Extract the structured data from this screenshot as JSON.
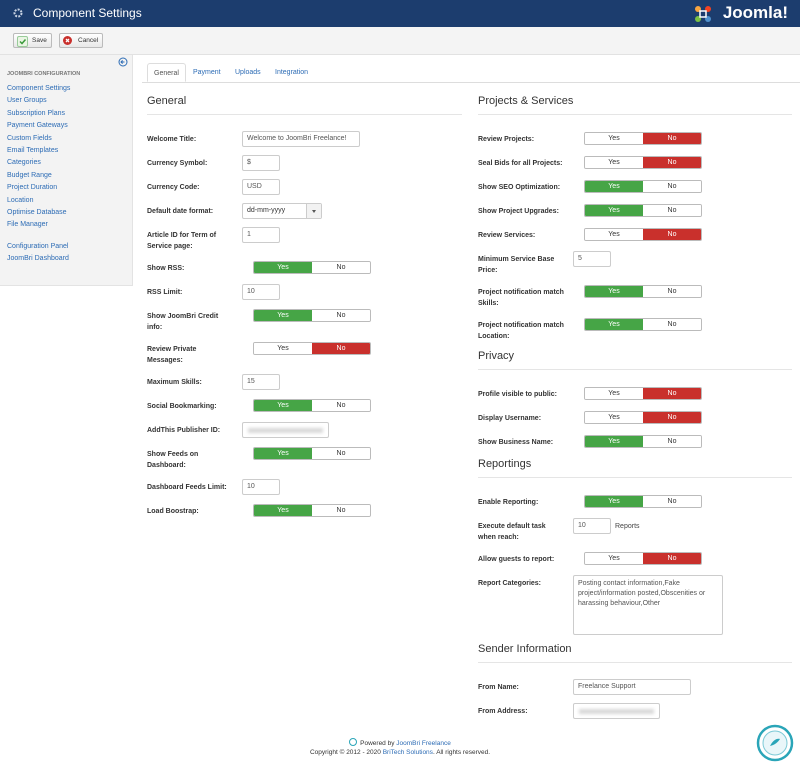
{
  "header": {
    "title": "Component Settings",
    "brand": "Joomla!"
  },
  "toolbar": {
    "save": "Save",
    "cancel": "Cancel"
  },
  "sidebar": {
    "heading": "JOOMBRI CONFIGURATION",
    "links": [
      "Component Settings",
      "User Groups",
      "Subscription Plans",
      "Payment Gateways",
      "Custom Fields",
      "Email Templates",
      "Categories",
      "Budget Range",
      "Project Duration",
      "Location",
      "Optimise Database",
      "File Manager"
    ],
    "links2": [
      "Configuration Panel",
      "JoomBri Dashboard"
    ]
  },
  "tabs": [
    {
      "label": "General",
      "active": true
    },
    {
      "label": "Payment"
    },
    {
      "label": "Uploads"
    },
    {
      "label": "Integration"
    }
  ],
  "toggle_labels": {
    "yes": "Yes",
    "no": "No"
  },
  "columns": [
    {
      "sections": [
        {
          "title": "General",
          "fields": [
            {
              "label": "Welcome Title:",
              "input": "text",
              "value": "Welcome to JoomBri Freelance!"
            },
            {
              "label": "Currency Symbol:",
              "input": "short",
              "value": "$"
            },
            {
              "label": "Currency Code:",
              "input": "short",
              "value": "USD"
            },
            {
              "label": "Default date format:",
              "input": "select",
              "value": "dd-mm-yyyy"
            },
            {
              "label": "Article ID for Term of Service page:",
              "input": "short",
              "value": "1"
            },
            {
              "label": "Show RSS:",
              "input": "toggle",
              "on": true
            },
            {
              "label": "RSS Limit:",
              "input": "short",
              "value": "10"
            },
            {
              "label": "Show JoomBri Credit info:",
              "input": "toggle",
              "on": true
            },
            {
              "label": "Review Private Messages:",
              "input": "toggle",
              "on": false
            },
            {
              "label": "Maximum Skills:",
              "input": "short",
              "value": "15"
            },
            {
              "label": "Social Bookmarking:",
              "input": "toggle",
              "on": true
            },
            {
              "label": "AddThis Publisher ID:",
              "input": "hidden"
            },
            {
              "label": "Show Feeds on Dashboard:",
              "input": "toggle",
              "on": true
            },
            {
              "label": "Dashboard Feeds Limit:",
              "input": "short",
              "value": "10"
            },
            {
              "label": "Load Boostrap:",
              "input": "toggle",
              "on": true
            }
          ]
        }
      ]
    },
    {
      "sections": [
        {
          "title": "Projects & Services",
          "fields": [
            {
              "label": "Review Projects:",
              "input": "toggle",
              "on": false
            },
            {
              "label": "Seal Bids for all Projects:",
              "input": "toggle",
              "on": false
            },
            {
              "label": "Show SEO Optimization:",
              "input": "toggle",
              "on": true
            },
            {
              "label": "Show Project Upgrades:",
              "input": "toggle",
              "on": true
            },
            {
              "label": "Review Services:",
              "input": "toggle",
              "on": false
            },
            {
              "label": "Minimum Service Base Price:",
              "input": "short",
              "value": "5"
            },
            {
              "label": "Project notification match Skills:",
              "input": "toggle",
              "on": true
            },
            {
              "label": "Project notification match Location:",
              "input": "toggle",
              "on": true
            }
          ]
        },
        {
          "title": "Privacy",
          "fields": [
            {
              "label": "Profile visible to public:",
              "input": "toggle",
              "on": false
            },
            {
              "label": "Display Username:",
              "input": "toggle",
              "on": false
            },
            {
              "label": "Show Business Name:",
              "input": "toggle",
              "on": true
            }
          ]
        },
        {
          "title": "Reportings",
          "fields": [
            {
              "label": "Enable Reporting:",
              "input": "toggle",
              "on": true
            },
            {
              "label": "Execute default task when reach:",
              "input": "short",
              "value": "10",
              "suffix": "Reports"
            },
            {
              "label": "Allow guests to report:",
              "input": "toggle",
              "on": false
            },
            {
              "label": "Report Categories:",
              "input": "textarea",
              "value": "Posting contact information,Fake project/information posted,Obscenities or harassing behaviour,Other"
            }
          ]
        },
        {
          "title": "Sender Information",
          "fields": [
            {
              "label": "From Name:",
              "input": "text",
              "value": "Freelance Support"
            },
            {
              "label": "From Address:",
              "input": "hidden"
            }
          ]
        }
      ]
    }
  ],
  "footer": {
    "powered": "Powered by",
    "powered_link": "JoomBri Freelance",
    "copyright": "Copyright © 2012 - 2020",
    "company": "BriTech Solutions",
    "rights": ". All rights reserved."
  }
}
